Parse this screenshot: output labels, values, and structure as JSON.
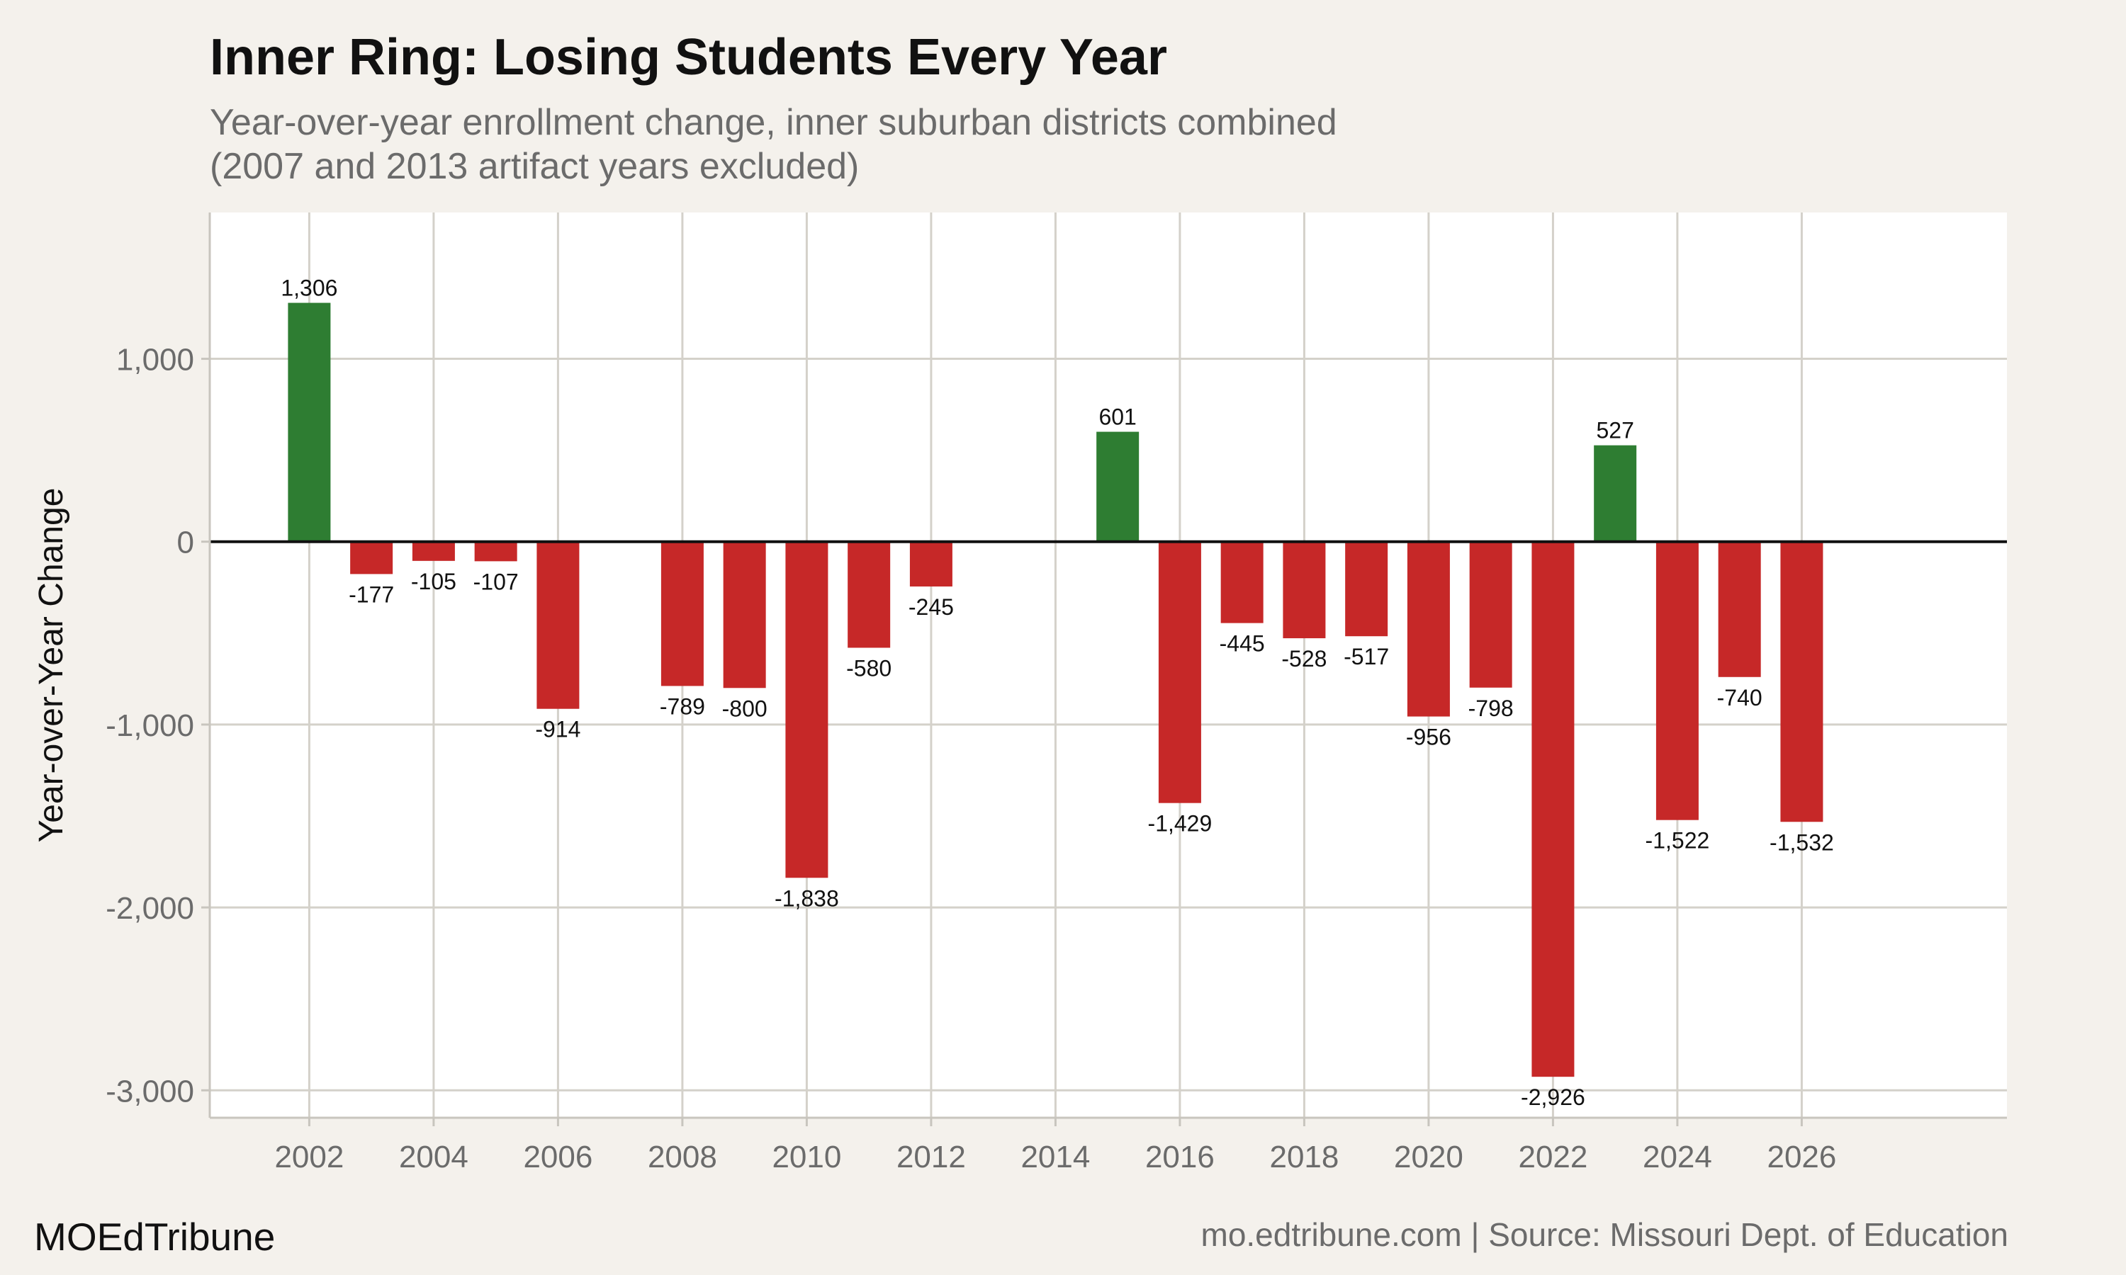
{
  "chart_data": {
    "type": "bar",
    "title": "Inner Ring: Losing Students Every Year",
    "subtitle_lines": [
      "Year-over-year enrollment change, inner suburban districts combined",
      "(2007 and 2013 artifact years excluded)"
    ],
    "ylabel": "Year-over-Year Change",
    "xlabel": "",
    "xlim": [
      2000.4,
      2029.3
    ],
    "ylim": [
      -3150,
      1800
    ],
    "x_ticks": [
      2002,
      2004,
      2006,
      2008,
      2010,
      2012,
      2014,
      2016,
      2018,
      2020,
      2022,
      2024,
      2026
    ],
    "x_tick_labels": [
      "2002",
      "2004",
      "2006",
      "2008",
      "2010",
      "2012",
      "2014",
      "2016",
      "2018",
      "2020",
      "2022",
      "2024",
      "2026"
    ],
    "y_ticks": [
      1000,
      0,
      -1000,
      -2000,
      -3000
    ],
    "y_tick_labels": [
      "1,000",
      "0",
      "-1,000",
      "-2,000",
      "-3,000"
    ],
    "grid": true,
    "colors": {
      "positive": "#2e7d32",
      "negative": "#c62828"
    },
    "x": [
      2002,
      2003,
      2004,
      2005,
      2006,
      2008,
      2009,
      2010,
      2011,
      2012,
      2015,
      2016,
      2017,
      2018,
      2019,
      2020,
      2021,
      2022,
      2023,
      2024,
      2025,
      2026
    ],
    "values": [
      1306,
      -177,
      -105,
      -107,
      -914,
      -789,
      -800,
      -1838,
      -580,
      -245,
      601,
      -1429,
      -445,
      -528,
      -517,
      -956,
      -798,
      -2926,
      527,
      -1522,
      -740,
      -1532
    ],
    "value_labels": [
      "1,306",
      "-177",
      "-105",
      "-107",
      "-914",
      "-789",
      "-800",
      "-1,838",
      "-580",
      "-245",
      "601",
      "-1,429",
      "-445",
      "-528",
      "-517",
      "-956",
      "-798",
      "-2,926",
      "527",
      "-1,522",
      "-740",
      "-1,532"
    ]
  },
  "footer": {
    "brand": "MOEdTribune",
    "source": "mo.edtribune.com | Source: Missouri Dept. of Education"
  }
}
